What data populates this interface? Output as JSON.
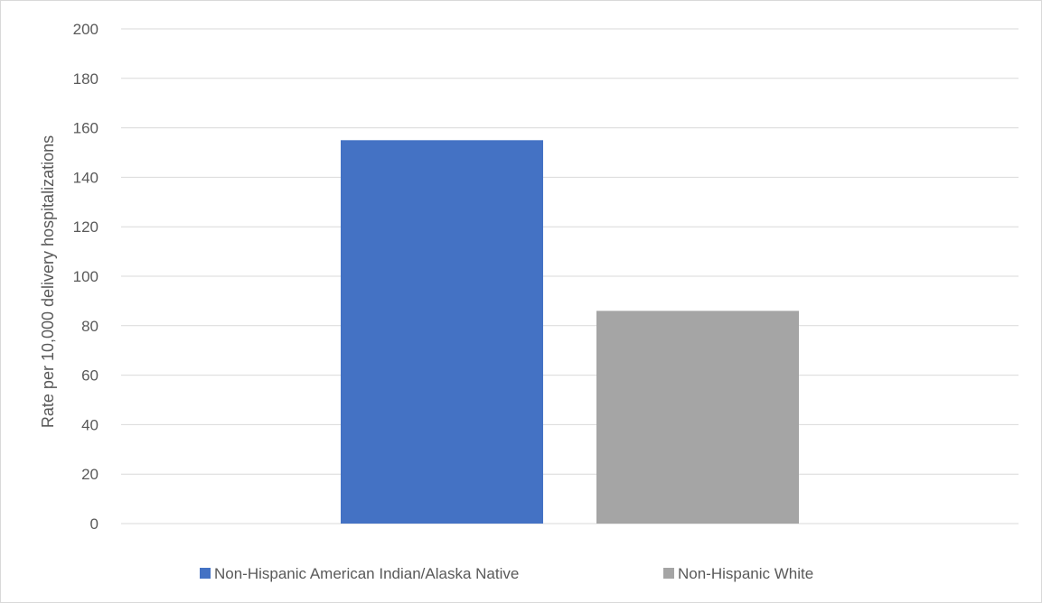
{
  "chart_data": {
    "type": "bar",
    "title": "",
    "xlabel": "",
    "ylabel": "Rate per 10,000 delivery hospitalizations",
    "ylim": [
      0,
      200
    ],
    "yticks": [
      0,
      20,
      40,
      60,
      80,
      100,
      120,
      140,
      160,
      180,
      200
    ],
    "grid": true,
    "legend_position": "bottom",
    "series": [
      {
        "name": "Non-Hispanic American Indian/Alaska Native",
        "value": 155,
        "color": "#4472c4"
      },
      {
        "name": "Non-Hispanic White",
        "value": 86,
        "color": "#a5a5a5"
      }
    ]
  }
}
